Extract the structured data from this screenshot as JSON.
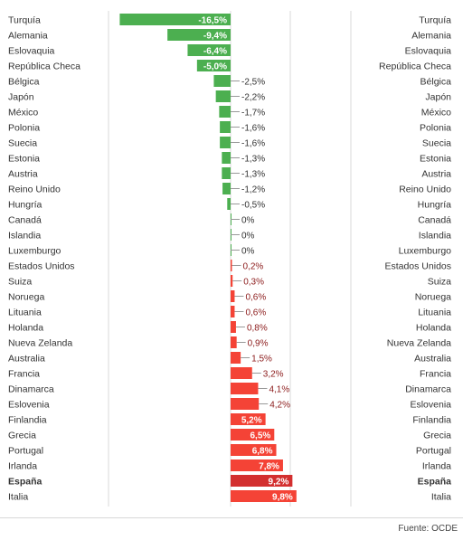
{
  "chart_data": {
    "type": "bar",
    "orientation": "horizontal",
    "categories": [
      "Turquía",
      "Alemania",
      "Eslovaquia",
      "República Checa",
      "Bélgica",
      "Japón",
      "México",
      "Polonia",
      "Suecia",
      "Estonia",
      "Austria",
      "Reino Unido",
      "Hungría",
      "Canadá",
      "Islandia",
      "Luxemburgo",
      "Estados Unidos",
      "Suiza",
      "Noruega",
      "Lituania",
      "Holanda",
      "Nueva Zelanda",
      "Australia",
      "Francia",
      "Dinamarca",
      "Eslovenia",
      "Finlandia",
      "Grecia",
      "Portugal",
      "Irlanda",
      "España",
      "Italia"
    ],
    "values": [
      -16.5,
      -9.4,
      -6.4,
      -5.0,
      -2.5,
      -2.2,
      -1.7,
      -1.6,
      -1.6,
      -1.3,
      -1.3,
      -1.2,
      -0.5,
      0,
      0,
      0,
      0.2,
      0.3,
      0.6,
      0.6,
      0.8,
      0.9,
      1.5,
      3.2,
      4.1,
      4.2,
      5.2,
      6.5,
      6.8,
      7.8,
      9.2,
      9.8
    ],
    "value_labels": [
      "-16,5%",
      "-9,4%",
      "-6,4%",
      "-5,0%",
      "-2,5%",
      "-2,2%",
      "-1,7%",
      "-1,6%",
      "-1,6%",
      "-1,3%",
      "-1,3%",
      "-1,2%",
      "-0,5%",
      "0%",
      "0%",
      "0%",
      "0,2%",
      "0,3%",
      "0,6%",
      "0,6%",
      "0,8%",
      "0,9%",
      "1,5%",
      "3,2%",
      "4,1%",
      "4,2%",
      "5,2%",
      "6,5%",
      "6,8%",
      "7,8%",
      "9,2%",
      "9,8%"
    ],
    "highlight": "España",
    "xlim": [
      -16.5,
      9.8
    ],
    "grid": "vertical lines",
    "colors": {
      "negative": "#4caf50",
      "positive": "#f44336",
      "highlight": "#d32f2f",
      "zero": "#4caf50",
      "label_positive_outside": "#8b1a1a",
      "label_negative_outside": "#333333",
      "label_inside": "#ffffff",
      "category_text": "#333333",
      "grid": "#d9d9d9"
    }
  },
  "source": "Fuente: OCDE"
}
